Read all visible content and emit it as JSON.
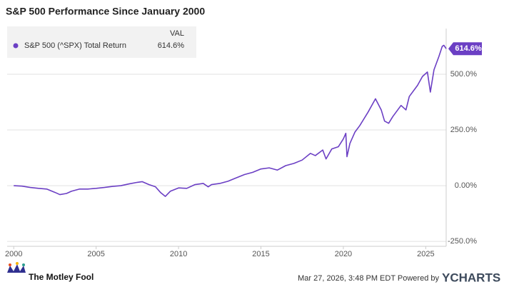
{
  "chart_data": {
    "type": "line",
    "title": "S&P 500 Performance Since January 2000",
    "legend_header": "VAL",
    "legend_value": "614.6%",
    "x": [
      2000.0,
      2000.5,
      2001.0,
      2001.5,
      2002.0,
      2002.5,
      2002.8,
      2003.2,
      2003.5,
      2004.0,
      2004.5,
      2005.0,
      2005.5,
      2006.0,
      2006.5,
      2007.0,
      2007.5,
      2007.8,
      2008.2,
      2008.6,
      2008.9,
      2009.2,
      2009.5,
      2010.0,
      2010.5,
      2011.0,
      2011.5,
      2011.8,
      2012.0,
      2012.5,
      2013.0,
      2013.5,
      2014.0,
      2014.5,
      2015.0,
      2015.5,
      2016.0,
      2016.5,
      2017.0,
      2017.5,
      2018.0,
      2018.3,
      2018.75,
      2018.95,
      2019.3,
      2019.7,
      2020.0,
      2020.15,
      2020.22,
      2020.4,
      2020.7,
      2021.0,
      2021.5,
      2021.95,
      2022.3,
      2022.5,
      2022.75,
      2023.0,
      2023.5,
      2023.8,
      2024.0,
      2024.5,
      2024.8,
      2025.1,
      2025.28,
      2025.5,
      2025.8,
      2026.0,
      2026.1,
      2026.24
    ],
    "series": [
      {
        "name": "S&P 500 (^SPX) Total Return",
        "color": "#6b3fc4",
        "values": [
          0,
          -2,
          -8,
          -12,
          -15,
          -30,
          -40,
          -35,
          -25,
          -15,
          -15,
          -12,
          -8,
          -3,
          0,
          8,
          15,
          18,
          5,
          -5,
          -30,
          -48,
          -25,
          -10,
          -12,
          5,
          10,
          -5,
          5,
          10,
          20,
          35,
          50,
          60,
          75,
          80,
          70,
          90,
          100,
          115,
          145,
          135,
          160,
          120,
          165,
          175,
          210,
          235,
          130,
          190,
          240,
          270,
          330,
          390,
          340,
          290,
          280,
          310,
          360,
          340,
          400,
          450,
          490,
          510,
          420,
          520,
          580,
          625,
          630,
          614.6
        ]
      }
    ],
    "xlim": [
      1999.6,
      2026.24
    ],
    "xticks": [
      2000,
      2005,
      2010,
      2015,
      2020,
      2025
    ],
    "ylim": [
      -272,
      705
    ],
    "yticks": [
      {
        "value": -250,
        "label": "-250.0%"
      },
      {
        "value": 0,
        "label": "0.00%"
      },
      {
        "value": 250,
        "label": "250.0%"
      },
      {
        "value": 500,
        "label": "500.0%"
      }
    ],
    "grid": true
  },
  "footer": {
    "logo_text": "The Motley Fool",
    "timestamp": "Mar 27, 2026, 3:48 PM EDT  Powered by",
    "brand": "YCHARTS"
  }
}
